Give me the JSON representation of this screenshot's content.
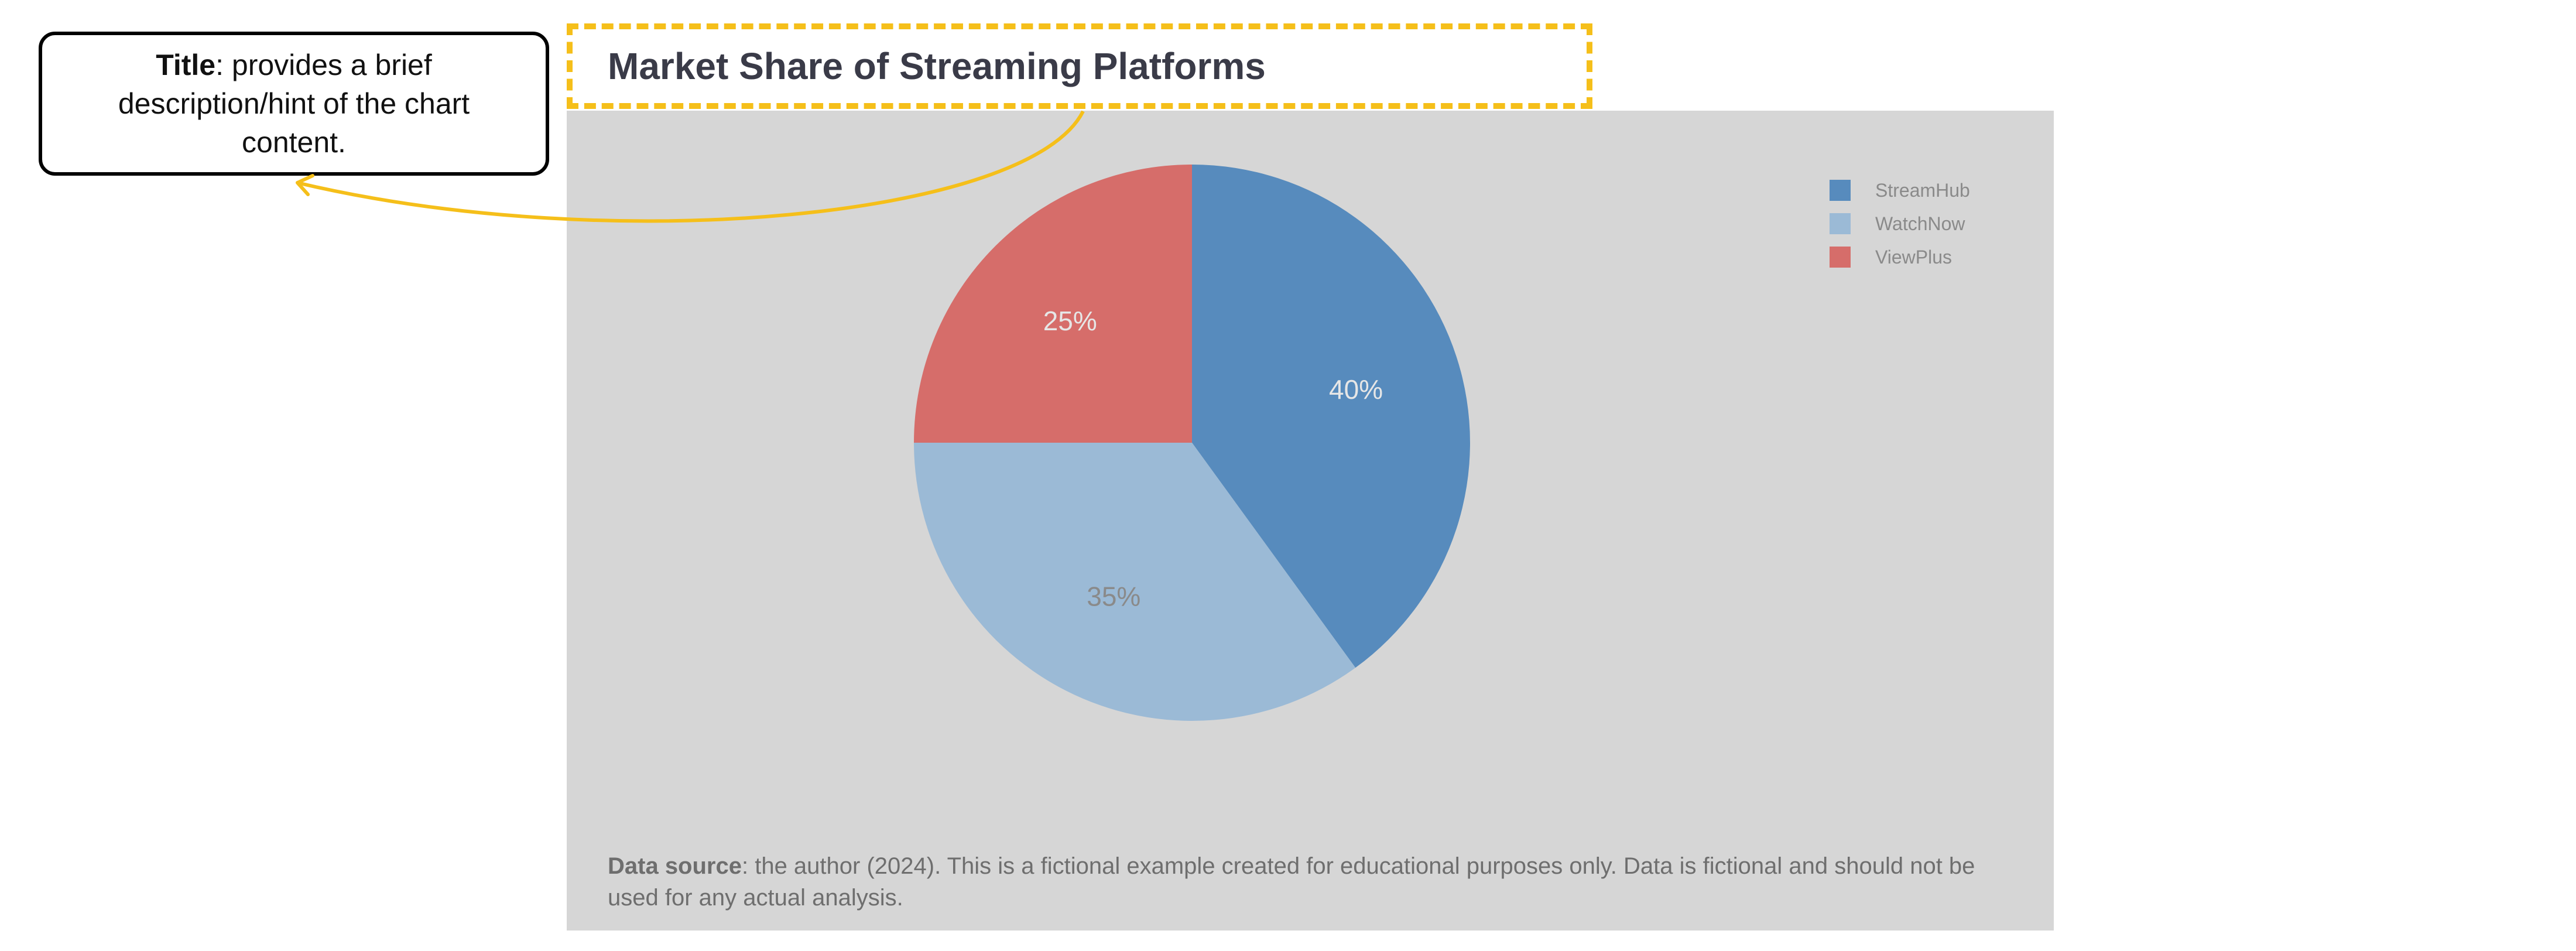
{
  "colors": {
    "panel_background": "#d6d6d6",
    "highlight": "#f5bf1a",
    "title_text": "#3a3b48"
  },
  "annotation": {
    "keyword": "Title",
    "text": ": provides a brief description/hint of the chart content."
  },
  "chart_data": {
    "type": "pie",
    "title": "Market Share of Streaming Platforms",
    "legend_position": "top-right",
    "categories": [
      "StreamHub",
      "WatchNow",
      "ViewPlus"
    ],
    "values": [
      40,
      35,
      25
    ],
    "labels": [
      "40%",
      "35%",
      "25%"
    ],
    "colors": [
      "#578bbd",
      "#9bbad6",
      "#d66d6a"
    ],
    "label_colors": [
      "#e6e6e6",
      "#8a8a8a",
      "#e6e6e6"
    ],
    "start_angle_deg": 0,
    "direction": "clockwise"
  },
  "footer": {
    "source_label": "Data source",
    "source_text": ": the author (2024). This is a fictional example created for educational purposes only. Data is fictional and should not be used for any actual analysis."
  }
}
